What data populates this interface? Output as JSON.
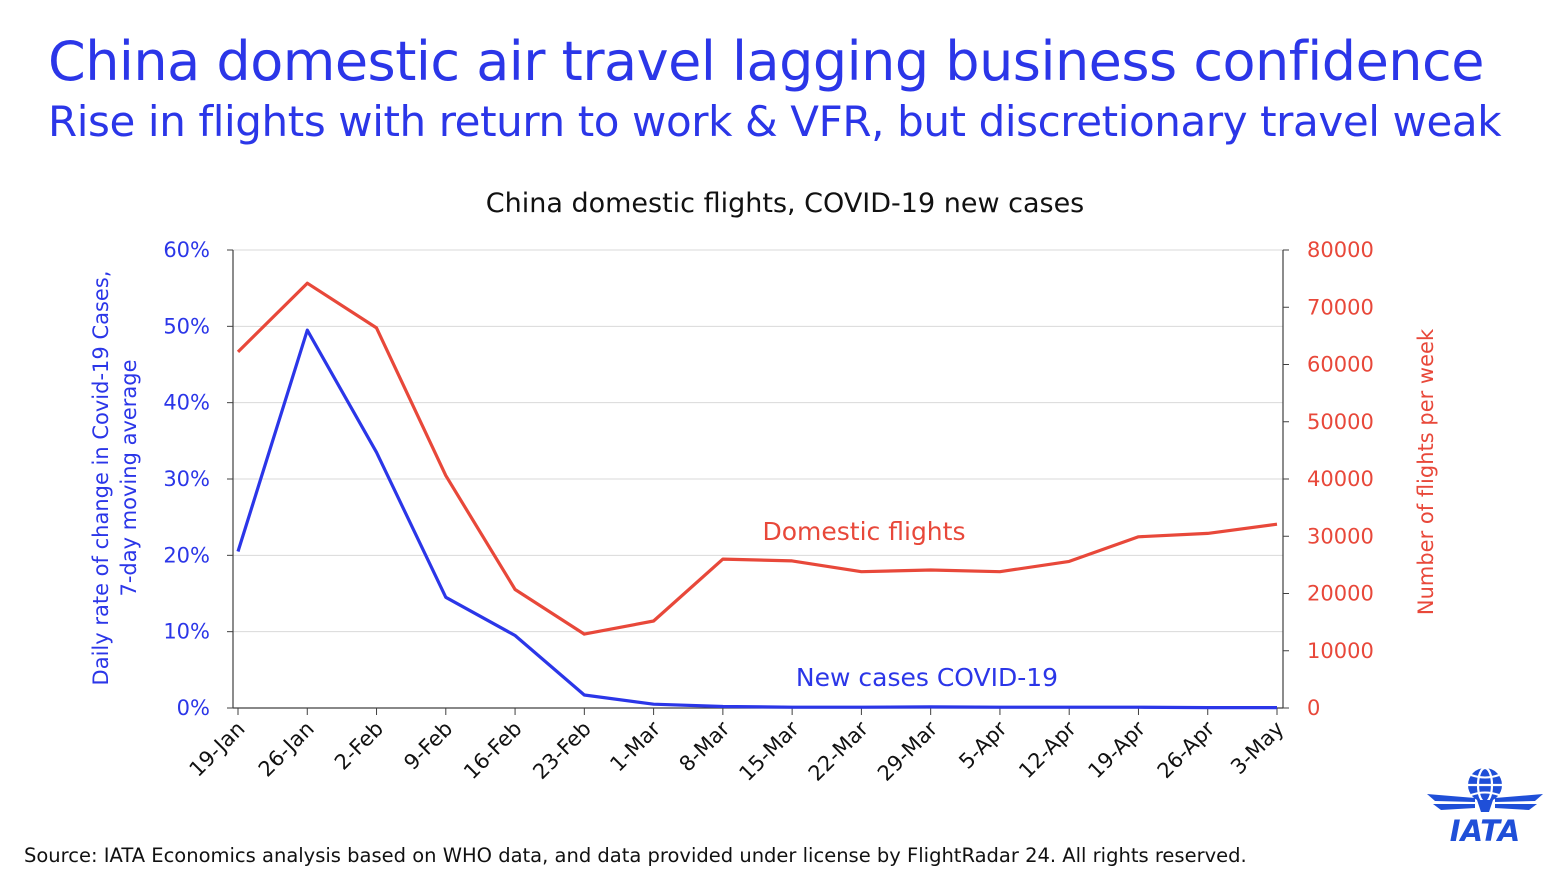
{
  "slide": {
    "title": "China domestic air travel lagging business confidence",
    "subtitle": "Rise in flights with return to work & VFR, but discretionary travel weak",
    "source": "Source: IATA Economics analysis based on WHO data, and data provided under license by FlightRadar 24. All rights reserved.",
    "logo_text": "IATA"
  },
  "colors": {
    "heading": "#2b36e8",
    "cases": "#2b36e8",
    "flights": "#e8483a",
    "grid": "#d9d9d9",
    "axis": "#404040",
    "text": "#111111"
  },
  "chart_data": {
    "type": "line",
    "title": "China domestic flights, COVID-19 new cases",
    "categories": [
      "19-Jan",
      "26-Jan",
      "2-Feb",
      "9-Feb",
      "16-Feb",
      "23-Feb",
      "1-Mar",
      "8-Mar",
      "15-Mar",
      "22-Mar",
      "29-Mar",
      "5-Apr",
      "12-Apr",
      "19-Apr",
      "26-Apr",
      "3-May"
    ],
    "y_left": {
      "label": "Daily rate of change in Covid-19 Cases, 7-day moving average",
      "label_lines": [
        "Daily rate of change in Covid-19 Cases,",
        "7-day moving average"
      ],
      "range": [
        0,
        60
      ],
      "ticks": [
        "0%",
        "10%",
        "20%",
        "30%",
        "40%",
        "50%",
        "60%"
      ]
    },
    "y_right": {
      "label": "Number of flights per week",
      "range": [
        0,
        80000
      ],
      "ticks": [
        "0",
        "10000",
        "20000",
        "30000",
        "40000",
        "50000",
        "60000",
        "70000",
        "80000"
      ]
    },
    "grid": "horizontal",
    "series": [
      {
        "name": "New cases COVID-19",
        "axis": "left",
        "values": [
          20.5,
          49.5,
          33.5,
          14.5,
          9.5,
          1.7,
          0.5,
          0.2,
          0.1,
          0.1,
          0.15,
          0.1,
          0.1,
          0.1,
          0.05,
          0.05
        ]
      },
      {
        "name": "Domestic flights",
        "axis": "right",
        "values": [
          62200,
          74200,
          66400,
          40600,
          20700,
          12900,
          15200,
          26000,
          25700,
          23800,
          24100,
          23800,
          25600,
          29900,
          30500,
          32100
        ]
      }
    ]
  }
}
